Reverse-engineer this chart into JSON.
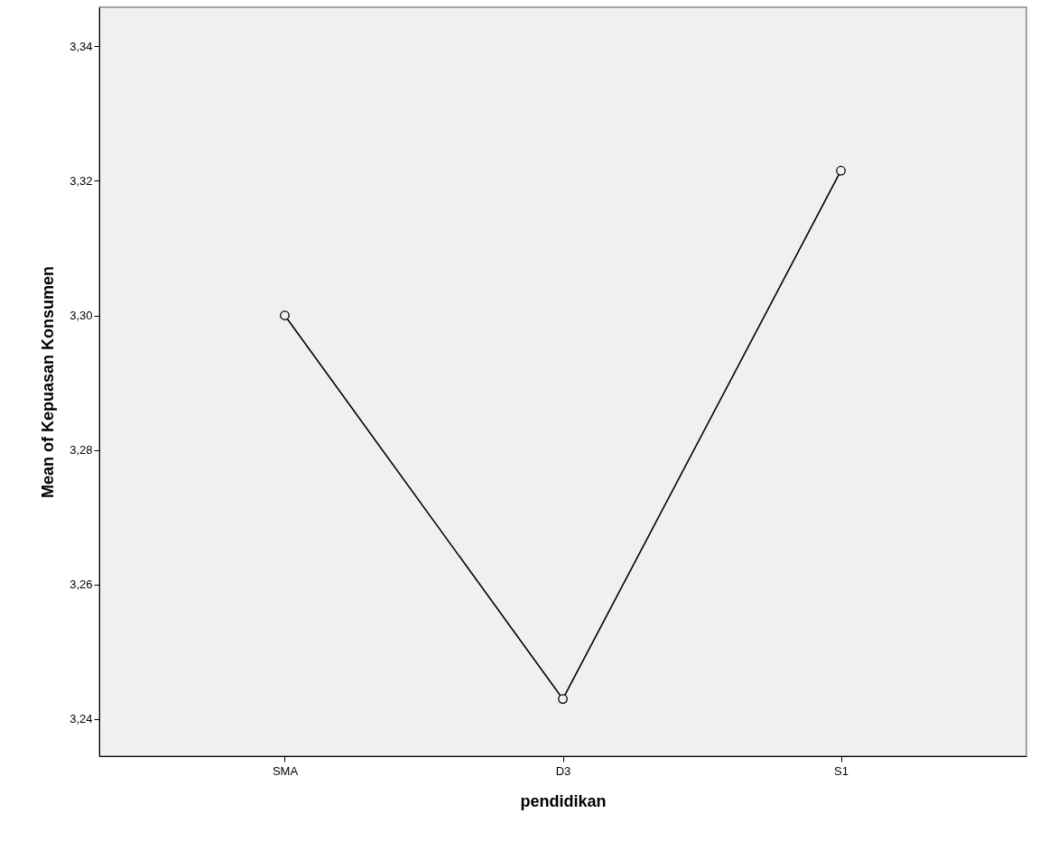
{
  "chart_data": {
    "type": "line",
    "xlabel": "pendidikan",
    "ylabel": "Mean of Kepuasan Konsumen",
    "categories": [
      "SMA",
      "D3",
      "S1"
    ],
    "series": [
      {
        "color": "#000000",
        "values": [
          3.3,
          3.243,
          3.3215
        ]
      }
    ],
    "ylim": [
      3.2345,
      3.3458
    ],
    "yticks": [
      {
        "value": 3.24,
        "label": "3,24"
      },
      {
        "value": 3.26,
        "label": "3,26"
      },
      {
        "value": 3.28,
        "label": "3,28"
      },
      {
        "value": 3.3,
        "label": "3,30"
      },
      {
        "value": 3.32,
        "label": "3,32"
      },
      {
        "value": 3.34,
        "label": "3,34"
      }
    ],
    "grid": false,
    "marker": "circle",
    "line_style": "solid"
  }
}
